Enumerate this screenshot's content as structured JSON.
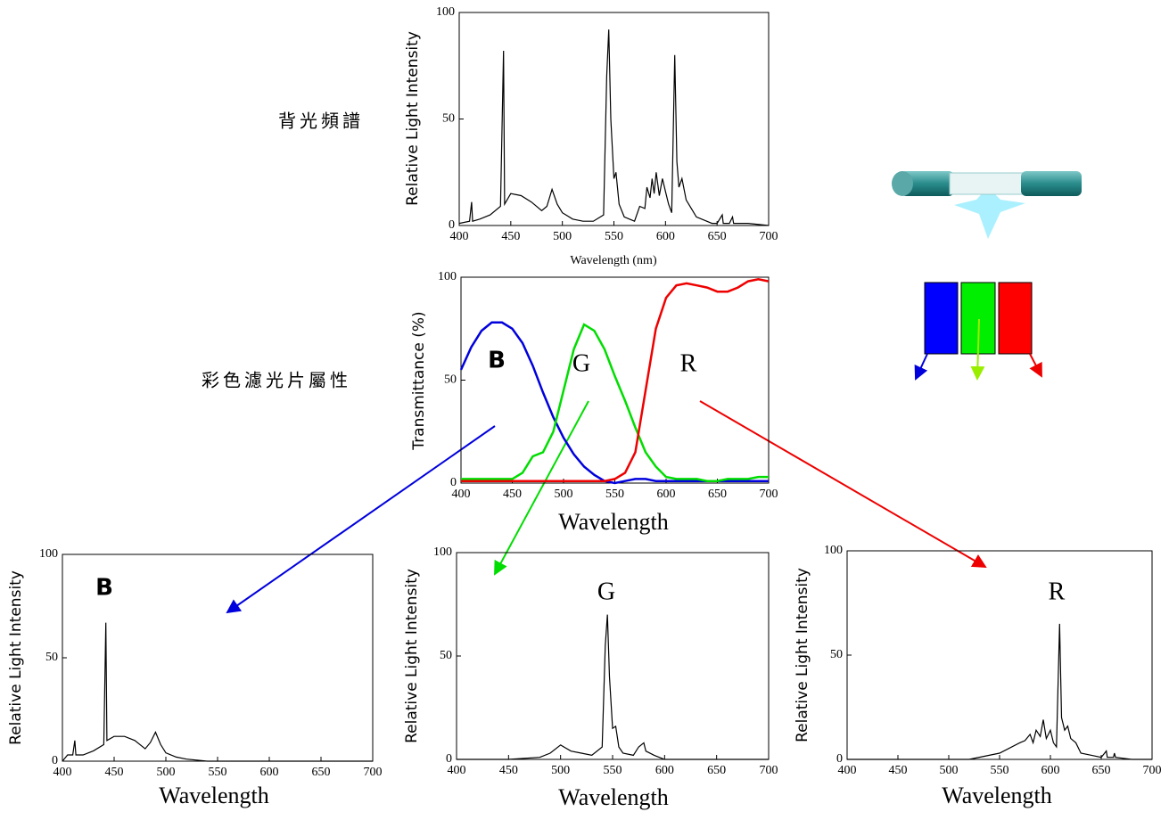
{
  "chart_data": [
    {
      "type": "line",
      "title": "背光頻譜",
      "xlabel": "Wavelength (nm)",
      "ylabel": "Relative Light Intensity",
      "xlim": [
        400,
        700
      ],
      "ylim": [
        0,
        100
      ],
      "xticks": [
        400,
        450,
        500,
        550,
        600,
        650,
        700
      ],
      "yticks": [
        0,
        50,
        100
      ],
      "color": "#000000",
      "x": [
        400,
        410,
        412,
        413,
        420,
        430,
        440,
        443,
        444,
        450,
        460,
        470,
        480,
        485,
        490,
        495,
        500,
        510,
        520,
        530,
        540,
        543,
        545,
        547,
        550,
        552,
        555,
        560,
        570,
        575,
        580,
        582,
        585,
        587,
        589,
        591,
        594,
        597,
        600,
        603,
        606,
        609,
        611,
        613,
        616,
        620,
        625,
        630,
        640,
        645,
        650,
        655,
        656,
        662,
        665,
        666,
        680,
        700
      ],
      "values": [
        1,
        2,
        11,
        2,
        3,
        5,
        9,
        82,
        10,
        15,
        14,
        11,
        7,
        9,
        17,
        10,
        6,
        3,
        2,
        2,
        5,
        70,
        92,
        50,
        22,
        25,
        10,
        4,
        2,
        9,
        8,
        18,
        13,
        22,
        15,
        25,
        14,
        22,
        16,
        10,
        6,
        80,
        30,
        18,
        22,
        12,
        8,
        4,
        2,
        1,
        1,
        5,
        1,
        1,
        4,
        1,
        1,
        0
      ]
    },
    {
      "type": "line",
      "title": "彩色濾光片屬性",
      "xlabel": "Wavelength",
      "ylabel": "Transmittance (%)",
      "xlim": [
        400,
        700
      ],
      "ylim": [
        0,
        100
      ],
      "xticks": [
        400,
        450,
        500,
        550,
        600,
        650,
        700
      ],
      "yticks": [
        0,
        50,
        100
      ],
      "x": [
        400,
        410,
        420,
        430,
        440,
        450,
        460,
        470,
        480,
        490,
        500,
        510,
        520,
        530,
        540,
        550,
        560,
        570,
        580,
        590,
        600,
        610,
        620,
        630,
        640,
        650,
        660,
        670,
        680,
        690,
        700
      ],
      "series": [
        {
          "name": "B",
          "color": "#0000dd",
          "values": [
            55,
            66,
            74,
            78,
            78,
            75,
            68,
            57,
            44,
            32,
            22,
            14,
            8,
            4,
            1,
            0,
            1,
            2,
            2,
            1,
            1,
            1,
            1,
            1,
            1,
            1,
            1,
            1,
            1,
            1,
            1
          ]
        },
        {
          "name": "G",
          "color": "#00dd00",
          "values": [
            2,
            2,
            2,
            2,
            2,
            2,
            5,
            13,
            15,
            25,
            45,
            65,
            77,
            74,
            65,
            52,
            40,
            27,
            15,
            8,
            3,
            2,
            2,
            2,
            1,
            1,
            2,
            2,
            2,
            3,
            3
          ]
        },
        {
          "name": "R",
          "color": "#ee0000",
          "values": [
            1,
            1,
            1,
            1,
            1,
            1,
            1,
            1,
            1,
            1,
            1,
            1,
            1,
            1,
            1,
            2,
            5,
            15,
            45,
            75,
            90,
            96,
            97,
            96,
            95,
            93,
            93,
            95,
            98,
            99,
            98
          ]
        }
      ]
    },
    {
      "type": "line",
      "annotation": "B",
      "annotation_color": "#0000dd",
      "xlabel": "Wavelength",
      "ylabel": "Relative Light Intensity",
      "xlim": [
        400,
        700
      ],
      "ylim": [
        0,
        100
      ],
      "xticks": [
        400,
        450,
        500,
        550,
        600,
        650,
        700
      ],
      "yticks": [
        0,
        50,
        100
      ],
      "color": "#000000",
      "x": [
        400,
        405,
        410,
        412,
        413,
        420,
        430,
        440,
        442,
        443,
        450,
        460,
        470,
        480,
        485,
        490,
        495,
        500,
        510,
        520,
        540,
        700
      ],
      "values": [
        0,
        3,
        3,
        10,
        3,
        3,
        5,
        8,
        67,
        10,
        12,
        12,
        10,
        6,
        9,
        14,
        8,
        4,
        2,
        1,
        0,
        0
      ]
    },
    {
      "type": "line",
      "annotation": "G",
      "annotation_color": "#00dd00",
      "xlabel": "Wavelength",
      "ylabel": "Relative Light Intensity",
      "xlim": [
        400,
        700
      ],
      "ylim": [
        0,
        100
      ],
      "xticks": [
        400,
        450,
        500,
        550,
        600,
        650,
        700
      ],
      "yticks": [
        0,
        50,
        100
      ],
      "color": "#000000",
      "x": [
        400,
        450,
        480,
        490,
        500,
        510,
        520,
        530,
        540,
        543,
        545,
        547,
        550,
        553,
        556,
        560,
        570,
        575,
        580,
        582,
        590,
        600,
        700
      ],
      "values": [
        0,
        0,
        1,
        3,
        7,
        4,
        3,
        2,
        6,
        55,
        70,
        40,
        15,
        16,
        6,
        3,
        2,
        6,
        8,
        4,
        2,
        0,
        0
      ]
    },
    {
      "type": "line",
      "annotation": "R",
      "annotation_color": "#ee0000",
      "xlabel": "Wavelength",
      "ylabel": "Relative Light Intensity",
      "xlim": [
        400,
        700
      ],
      "ylim": [
        0,
        100
      ],
      "xticks": [
        400,
        450,
        500,
        550,
        600,
        650,
        700
      ],
      "yticks": [
        0,
        50,
        100
      ],
      "color": "#000000",
      "x": [
        400,
        520,
        550,
        570,
        575,
        580,
        583,
        586,
        590,
        593,
        596,
        600,
        603,
        606,
        609,
        611,
        614,
        617,
        620,
        625,
        630,
        640,
        650,
        655,
        656,
        662,
        663,
        664,
        680,
        700
      ],
      "values": [
        0,
        0,
        3,
        8,
        9,
        12,
        8,
        14,
        11,
        19,
        10,
        14,
        8,
        6,
        65,
        20,
        14,
        16,
        10,
        8,
        3,
        2,
        1,
        4,
        1,
        1,
        3,
        1,
        0,
        0
      ]
    }
  ]
}
